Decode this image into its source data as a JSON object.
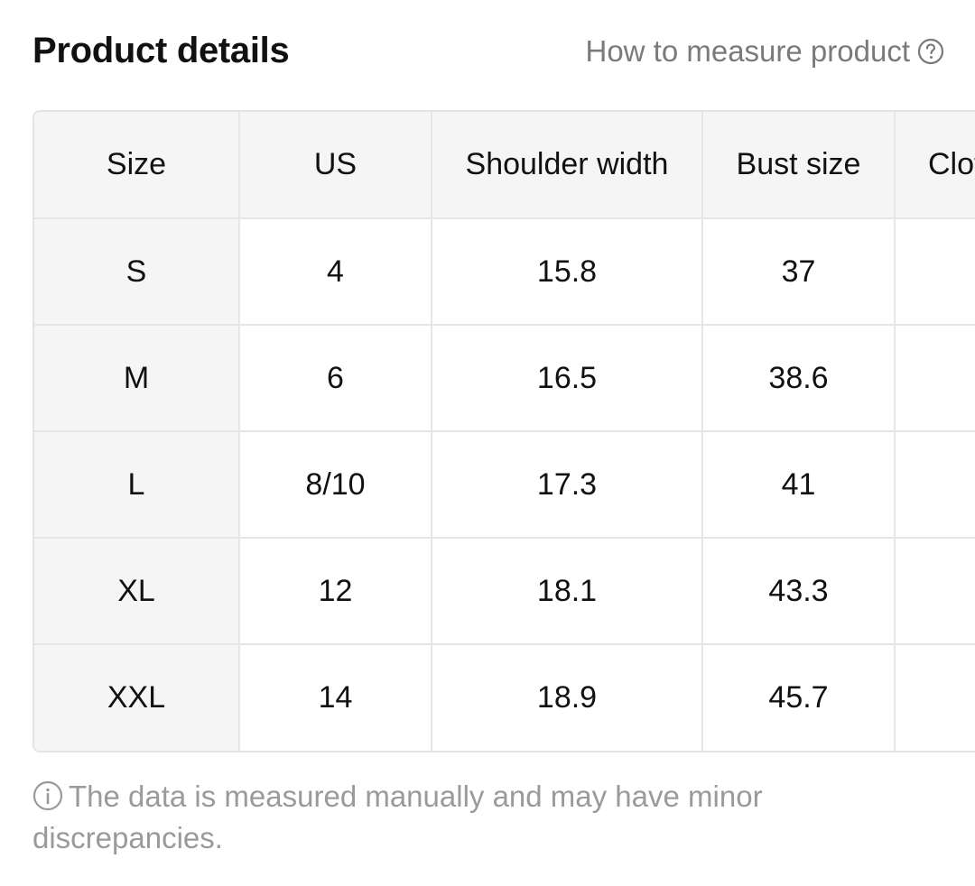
{
  "header": {
    "title": "Product details",
    "measure_link": "How to measure product",
    "help_icon": "question-circle-icon"
  },
  "size_table": {
    "columns": [
      "Size",
      "US",
      "Shoulder width",
      "Bust size",
      "Clot"
    ],
    "rows": [
      {
        "size": "S",
        "us": "4",
        "shoulder": "15.8",
        "bust": "37"
      },
      {
        "size": "M",
        "us": "6",
        "shoulder": "16.5",
        "bust": "38.6"
      },
      {
        "size": "L",
        "us": "8/10",
        "shoulder": "17.3",
        "bust": "41"
      },
      {
        "size": "XL",
        "us": "12",
        "shoulder": "18.1",
        "bust": "43.3"
      },
      {
        "size": "XXL",
        "us": "14",
        "shoulder": "18.9",
        "bust": "45.7"
      }
    ]
  },
  "footnote": {
    "icon": "info-circle-icon",
    "text": "The data is measured manually and may have minor discrepancies."
  },
  "colors": {
    "text": "#111111",
    "muted": "#7a7a7a",
    "note": "#9a9a9a",
    "header_bg": "#f5f5f5",
    "border": "#e6e6e6"
  }
}
